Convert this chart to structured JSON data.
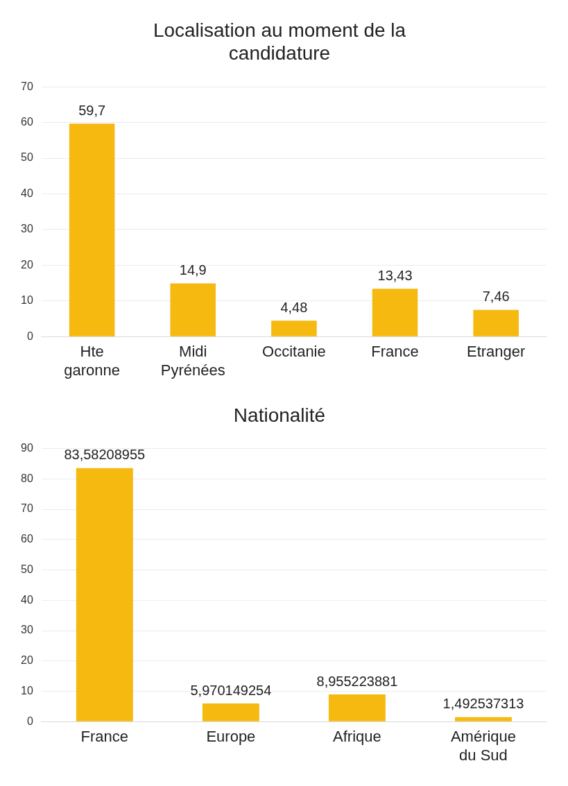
{
  "chart_data": [
    {
      "type": "bar",
      "title": "Localisation au moment de la candidature",
      "categories": [
        "Hte garonne",
        "Midi Pyrénées",
        "Occitanie",
        "France",
        "Etranger"
      ],
      "values": [
        59.7,
        14.9,
        4.48,
        13.43,
        7.46
      ],
      "value_labels": [
        "59,7",
        "14,9",
        "4,48",
        "13,43",
        "7,46"
      ],
      "color": "#f5b90f",
      "ylim": [
        0,
        70
      ],
      "yticks": [
        0,
        10,
        20,
        30,
        40,
        50,
        60,
        70
      ],
      "grid": "y"
    },
    {
      "type": "bar",
      "title": "Nationalité",
      "categories": [
        "France",
        "Europe",
        "Afrique",
        "Amérique du Sud"
      ],
      "values": [
        83.58208955,
        5.970149254,
        8.955223881,
        1.492537313
      ],
      "value_labels": [
        "83,58208955",
        "5,970149254",
        "8,955223881",
        "1,492537313"
      ],
      "color": "#f5b90f",
      "ylim": [
        0,
        90
      ],
      "yticks": [
        0,
        10,
        20,
        30,
        40,
        50,
        60,
        70,
        80,
        90
      ],
      "grid": "y"
    }
  ]
}
